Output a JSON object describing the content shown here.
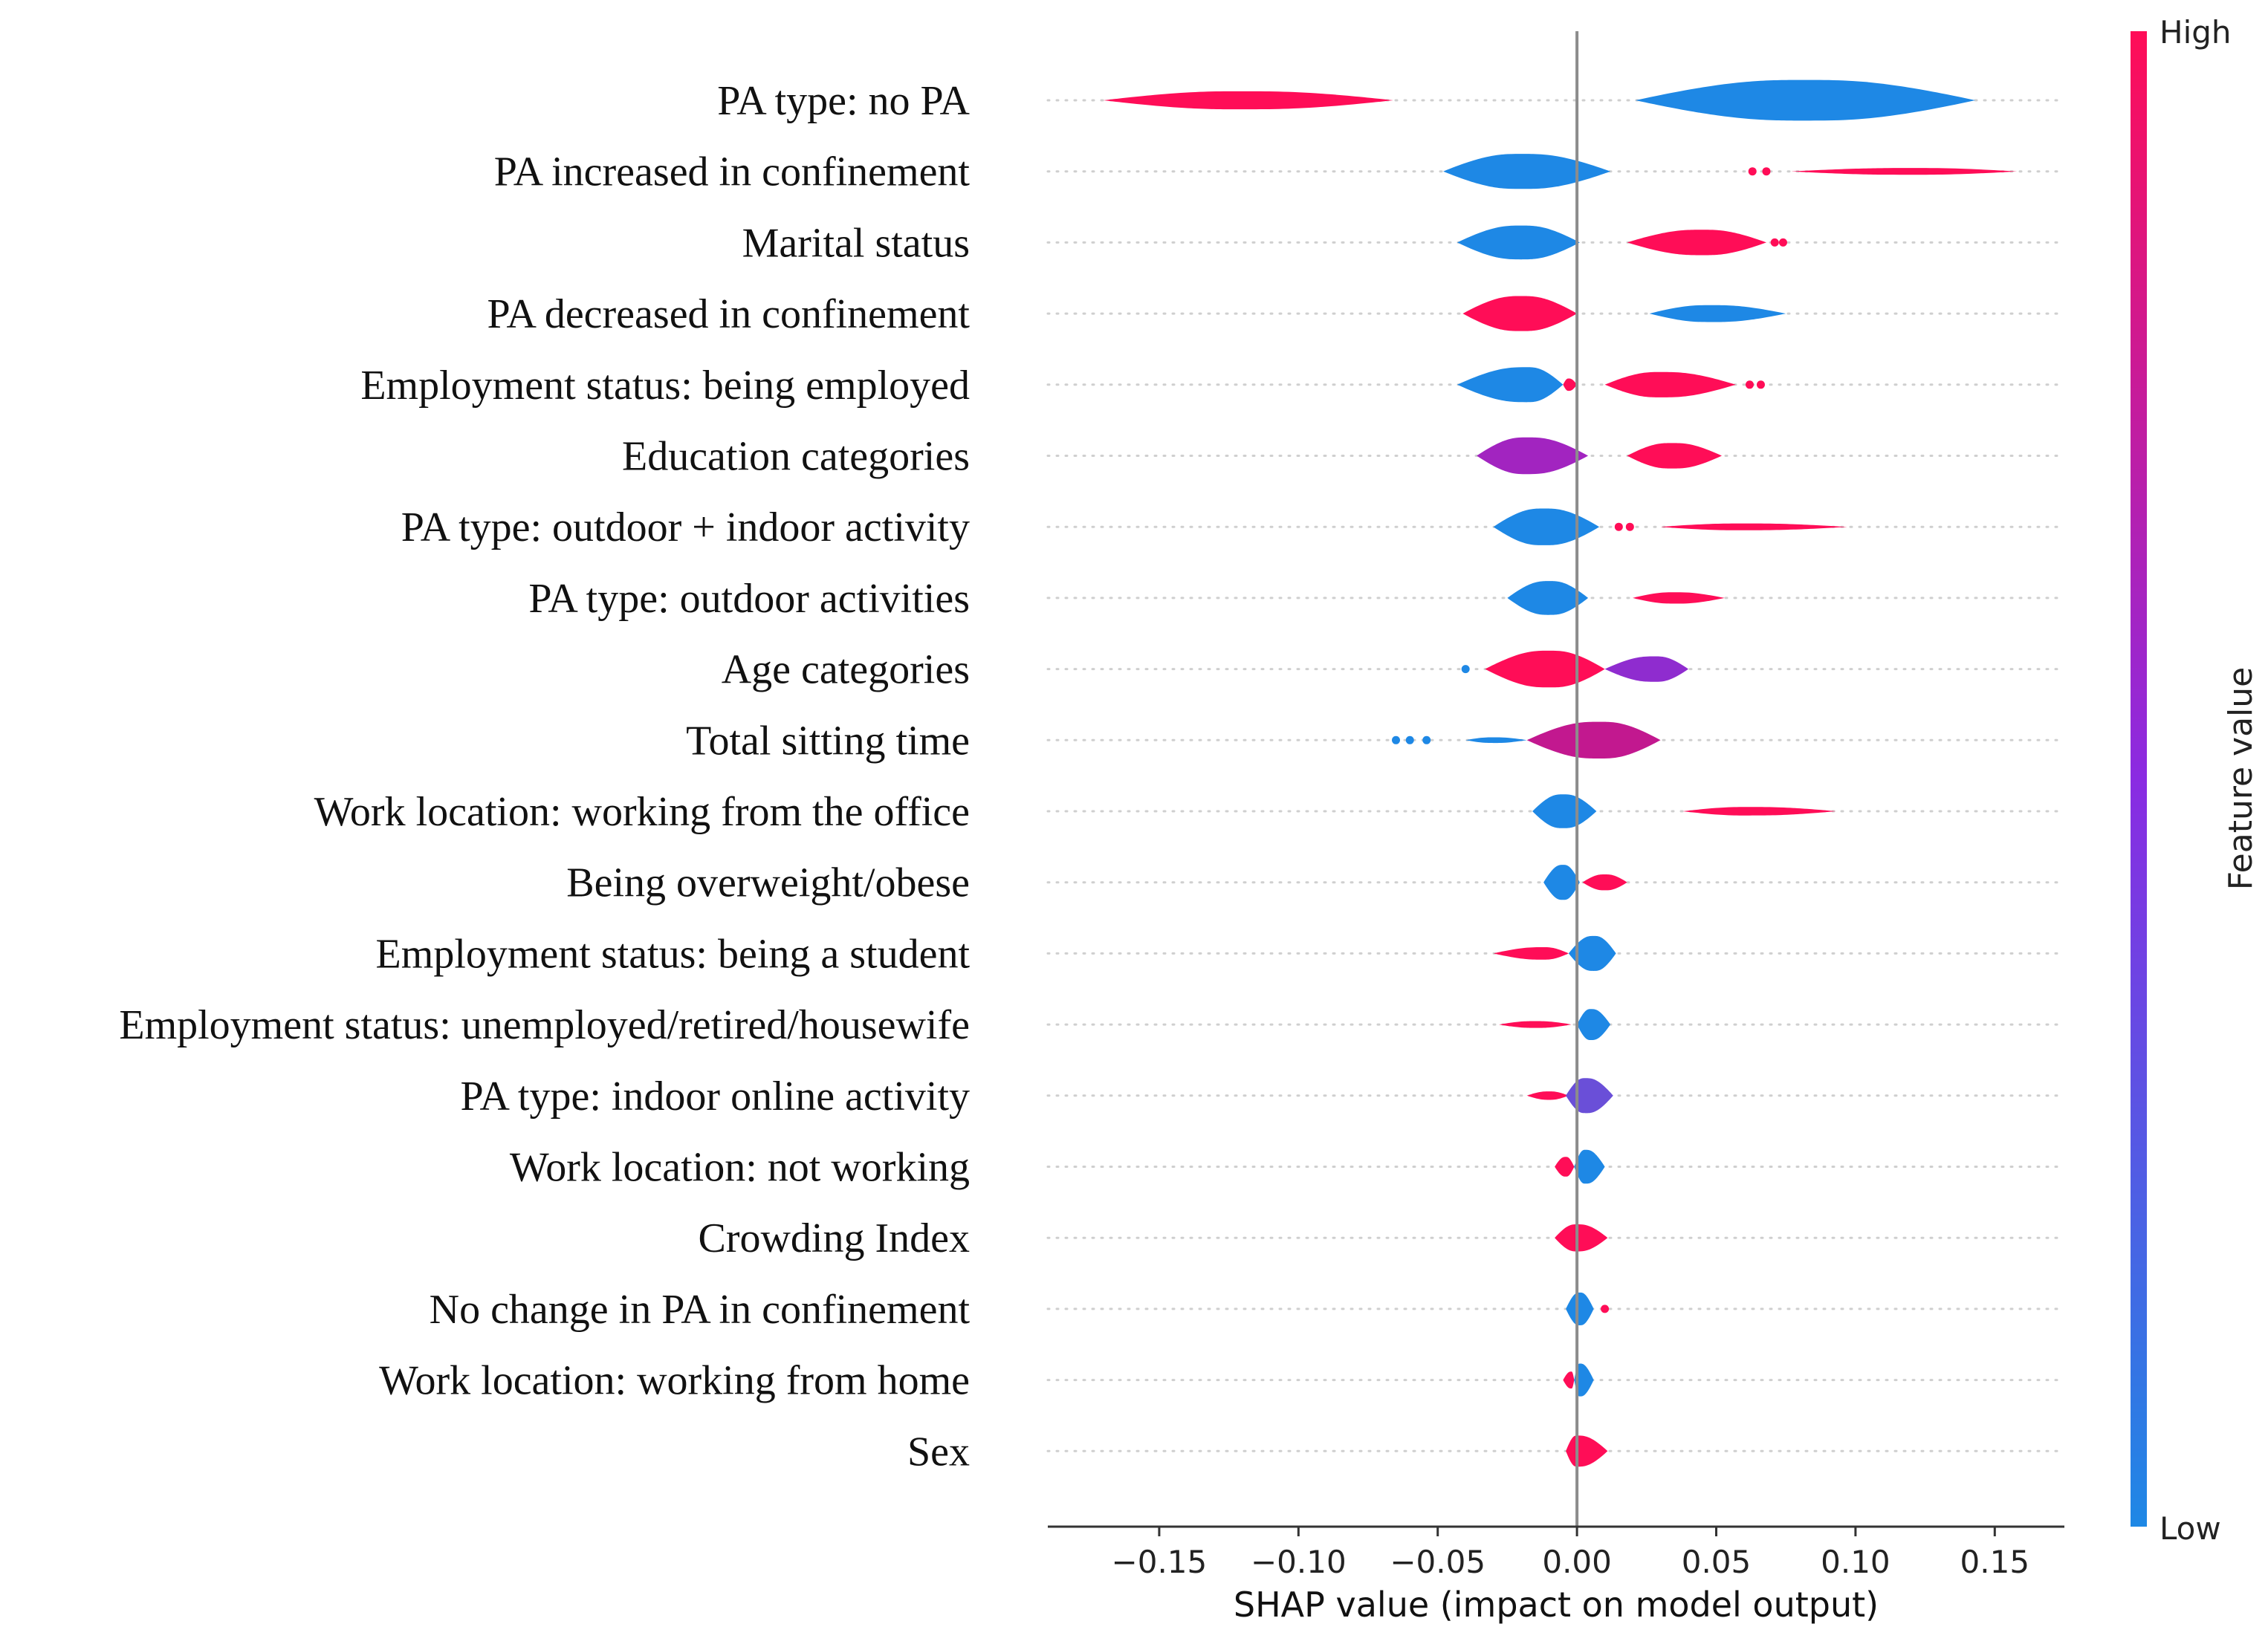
{
  "chart_data": {
    "type": "violin",
    "xlabel": "SHAP value (impact on model output)",
    "xlim": [
      -0.19,
      0.175
    ],
    "xticks": [
      -0.15,
      -0.1,
      -0.05,
      0.0,
      0.05,
      0.1,
      0.15
    ],
    "xtick_labels": [
      "−0.15",
      "−0.10",
      "−0.05",
      "0.00",
      "0.05",
      "0.10",
      "0.15"
    ],
    "colorbar": {
      "title": "Feature value",
      "high_label": "High",
      "low_label": "Low",
      "high_color": "#ff0d57",
      "low_color": "#1e88e5"
    },
    "features": [
      {
        "name": "PA type: no PA",
        "violins": [
          {
            "from": -0.17,
            "to": -0.066,
            "peak": -0.12,
            "width": 0.32,
            "color": "#ff0d57"
          },
          {
            "from": 0.021,
            "to": 0.143,
            "peak": 0.082,
            "width": 0.72,
            "color": "#1e88e5"
          }
        ],
        "dots": []
      },
      {
        "name": "PA increased in confinement",
        "violins": [
          {
            "from": -0.048,
            "to": 0.012,
            "peak": -0.02,
            "width": 0.62,
            "color": "#1e88e5"
          },
          {
            "from": 0.077,
            "to": 0.158,
            "peak": 0.12,
            "width": 0.12,
            "color": "#ff0d57"
          }
        ],
        "dots": [
          {
            "x": 0.063,
            "color": "#ff0d57"
          },
          {
            "x": 0.068,
            "color": "#ff0d57"
          }
        ]
      },
      {
        "name": "Marital status",
        "violins": [
          {
            "from": -0.043,
            "to": 0.001,
            "peak": -0.02,
            "width": 0.6,
            "color": "#1e88e5"
          },
          {
            "from": 0.018,
            "to": 0.068,
            "peak": 0.045,
            "width": 0.45,
            "color": "#ff0d57"
          }
        ],
        "dots": [
          {
            "x": 0.071,
            "color": "#ff0d57"
          },
          {
            "x": 0.074,
            "color": "#ff0d57"
          }
        ]
      },
      {
        "name": "PA decreased in confinement",
        "violins": [
          {
            "from": -0.041,
            "to": 0.0,
            "peak": -0.02,
            "width": 0.62,
            "color": "#ff0d57"
          },
          {
            "from": 0.026,
            "to": 0.075,
            "peak": 0.048,
            "width": 0.3,
            "color": "#1e88e5"
          }
        ],
        "dots": []
      },
      {
        "name": "Employment status: being employed",
        "violins": [
          {
            "from": -0.043,
            "to": -0.005,
            "peak": -0.018,
            "width": 0.62,
            "color": "#1e88e5"
          },
          {
            "from": -0.005,
            "to": 0.0,
            "peak": -0.003,
            "width": 0.22,
            "color": "#ff0d57"
          },
          {
            "from": 0.01,
            "to": 0.057,
            "peak": 0.03,
            "width": 0.45,
            "color": "#ff0d57"
          }
        ],
        "dots": [
          {
            "x": 0.062,
            "color": "#ff0d57"
          },
          {
            "x": 0.066,
            "color": "#ff0d57"
          }
        ]
      },
      {
        "name": "Education categories",
        "violins": [
          {
            "from": -0.036,
            "to": 0.004,
            "peak": -0.018,
            "width": 0.65,
            "color": "#a224c0"
          },
          {
            "from": 0.018,
            "to": 0.052,
            "peak": 0.034,
            "width": 0.45,
            "color": "#ff0d57"
          }
        ],
        "dots": []
      },
      {
        "name": "PA type: outdoor + indoor activity",
        "violins": [
          {
            "from": -0.03,
            "to": 0.008,
            "peak": -0.012,
            "width": 0.65,
            "color": "#1e88e5"
          },
          {
            "from": 0.03,
            "to": 0.097,
            "peak": 0.06,
            "width": 0.12,
            "color": "#ff0d57"
          }
        ],
        "dots": [
          {
            "x": 0.015,
            "color": "#ff0d57"
          },
          {
            "x": 0.019,
            "color": "#ff0d57"
          }
        ]
      },
      {
        "name": "PA type: outdoor activities",
        "violins": [
          {
            "from": -0.025,
            "to": 0.004,
            "peak": -0.01,
            "width": 0.6,
            "color": "#1e88e5"
          },
          {
            "from": 0.02,
            "to": 0.053,
            "peak": 0.035,
            "width": 0.2,
            "color": "#ff0d57"
          }
        ],
        "dots": []
      },
      {
        "name": "Age categories",
        "violins": [
          {
            "from": -0.033,
            "to": 0.01,
            "peak": -0.01,
            "width": 0.65,
            "color": "#ff0d57"
          },
          {
            "from": 0.01,
            "to": 0.04,
            "peak": 0.028,
            "width": 0.45,
            "color": "#8f2ccf"
          }
        ],
        "dots": [
          {
            "x": -0.04,
            "color": "#1e88e5"
          }
        ]
      },
      {
        "name": "Total sitting time",
        "violins": [
          {
            "from": -0.04,
            "to": -0.018,
            "peak": -0.03,
            "width": 0.1,
            "color": "#1e88e5"
          },
          {
            "from": -0.018,
            "to": 0.03,
            "peak": 0.008,
            "width": 0.65,
            "color": "#c2188f"
          }
        ],
        "dots": [
          {
            "x": -0.065,
            "color": "#1e88e5"
          },
          {
            "x": -0.06,
            "color": "#1e88e5"
          },
          {
            "x": -0.054,
            "color": "#1e88e5"
          }
        ]
      },
      {
        "name": "Work location: working from the office",
        "violins": [
          {
            "from": -0.016,
            "to": 0.007,
            "peak": -0.005,
            "width": 0.6,
            "color": "#1e88e5"
          },
          {
            "from": 0.038,
            "to": 0.093,
            "peak": 0.062,
            "width": 0.15,
            "color": "#ff0d57"
          }
        ],
        "dots": []
      },
      {
        "name": "Being overweight/obese",
        "violins": [
          {
            "from": -0.012,
            "to": 0.001,
            "peak": -0.005,
            "width": 0.62,
            "color": "#1e88e5"
          },
          {
            "from": 0.002,
            "to": 0.018,
            "peak": 0.01,
            "width": 0.28,
            "color": "#ff0d57"
          }
        ],
        "dots": []
      },
      {
        "name": "Employment status: being a student",
        "violins": [
          {
            "from": -0.03,
            "to": -0.003,
            "peak": -0.012,
            "width": 0.22,
            "color": "#ff0d57"
          },
          {
            "from": -0.003,
            "to": 0.014,
            "peak": 0.006,
            "width": 0.62,
            "color": "#1e88e5"
          }
        ],
        "dots": []
      },
      {
        "name": "Employment status: unemployed/retired/housewife",
        "violins": [
          {
            "from": -0.028,
            "to": -0.002,
            "peak": -0.015,
            "width": 0.12,
            "color": "#ff0d57"
          },
          {
            "from": 0.0,
            "to": 0.012,
            "peak": 0.005,
            "width": 0.55,
            "color": "#1e88e5"
          }
        ],
        "dots": []
      },
      {
        "name": "PA type: indoor online activity",
        "violins": [
          {
            "from": -0.018,
            "to": -0.003,
            "peak": -0.01,
            "width": 0.15,
            "color": "#ff0d57"
          },
          {
            "from": -0.004,
            "to": 0.013,
            "peak": 0.003,
            "width": 0.62,
            "color": "#6a4fd8"
          }
        ],
        "dots": []
      },
      {
        "name": "Work location: not working",
        "violins": [
          {
            "from": -0.008,
            "to": -0.001,
            "peak": -0.004,
            "width": 0.35,
            "color": "#ff0d57"
          },
          {
            "from": -0.001,
            "to": 0.01,
            "peak": 0.003,
            "width": 0.6,
            "color": "#1e88e5"
          }
        ],
        "dots": []
      },
      {
        "name": "Crowding Index",
        "violins": [
          {
            "from": -0.008,
            "to": 0.011,
            "peak": 0.0,
            "width": 0.48,
            "color": "#ff0d57"
          }
        ],
        "dots": []
      },
      {
        "name": "No change in PA in confinement",
        "violins": [
          {
            "from": -0.004,
            "to": 0.006,
            "peak": 0.001,
            "width": 0.58,
            "color": "#1e88e5"
          }
        ],
        "dots": [
          {
            "x": 0.01,
            "color": "#ff0d57"
          }
        ]
      },
      {
        "name": "Work location: working from home",
        "violins": [
          {
            "from": -0.005,
            "to": -0.001,
            "peak": -0.002,
            "width": 0.3,
            "color": "#ff0d57"
          },
          {
            "from": -0.001,
            "to": 0.006,
            "peak": 0.001,
            "width": 0.58,
            "color": "#1e88e5"
          }
        ],
        "dots": []
      },
      {
        "name": "Sex",
        "violins": [
          {
            "from": -0.004,
            "to": 0.011,
            "peak": 0.0,
            "width": 0.55,
            "color": "#ff0d57"
          }
        ],
        "dots": []
      }
    ]
  }
}
